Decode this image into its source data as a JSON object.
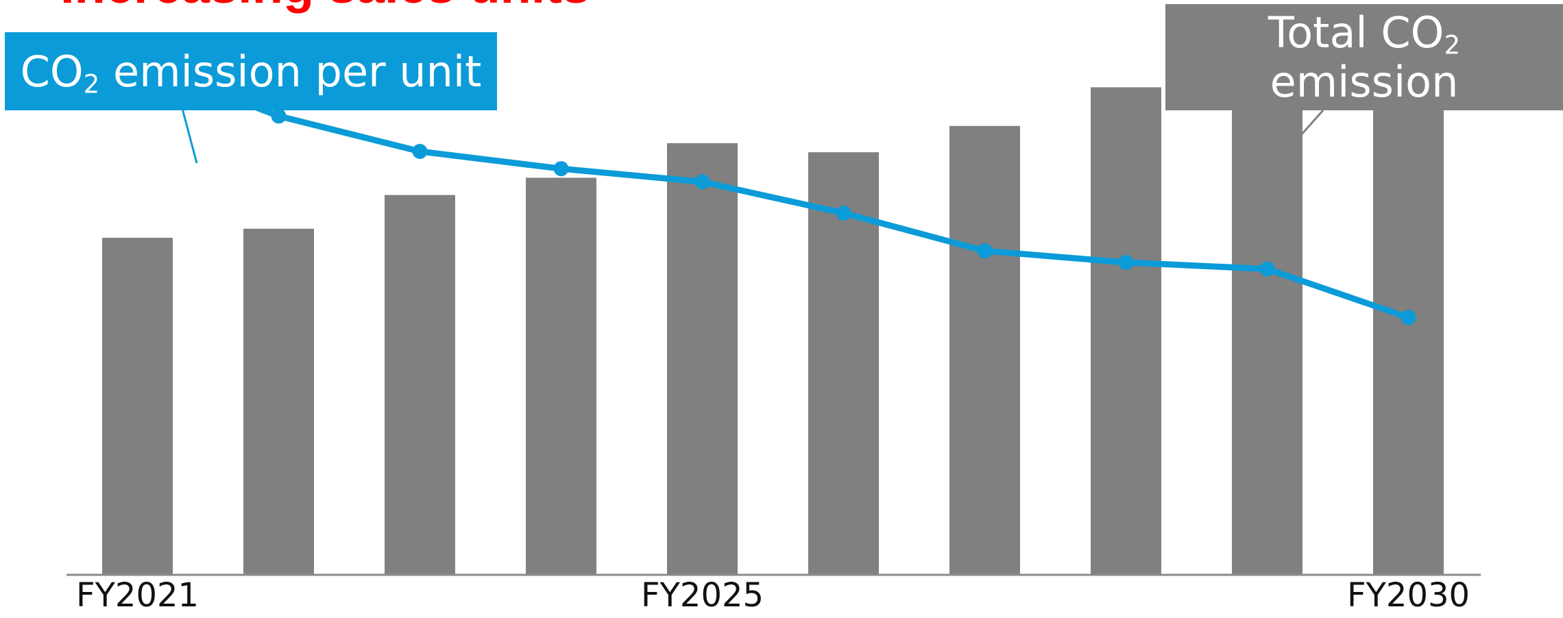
{
  "colors": {
    "bar": "#808080",
    "line": "#0b9bd8",
    "axis": "#8a8a8a",
    "headline": "#ff0000",
    "label_blue_bg": "#0b9bd8",
    "label_gray_bg": "#808080"
  },
  "headline": "Increasing sales units",
  "chart_data": {
    "type": "bar",
    "categories": [
      "FY2021",
      "",
      "",
      "",
      "FY2025",
      "",
      "",
      "",
      "",
      "FY2030"
    ],
    "series": [
      {
        "name": "Total CO2 emission",
        "type": "bar",
        "values": [
          410,
          421,
          462,
          483,
          525,
          514,
          546,
          593,
          623,
          584
        ]
      },
      {
        "name": "CO2 emission per unit",
        "type": "line",
        "values": [
          623,
          558,
          515,
          494,
          478,
          440,
          394,
          380,
          372,
          313
        ]
      }
    ],
    "ylim": [
      0,
      700
    ],
    "grid": false,
    "tick_labels": [
      {
        "index": 0,
        "text": "FY2021"
      },
      {
        "index": 4,
        "text": "FY2025"
      },
      {
        "index": 9,
        "text": "FY2030"
      }
    ],
    "annotations": {
      "per_unit": {
        "prefix": "CO",
        "sub": "2",
        "suffix": " emission per unit"
      },
      "total": {
        "line1_prefix": "Total CO",
        "line1_sub": "2",
        "line2": "emission"
      }
    }
  }
}
